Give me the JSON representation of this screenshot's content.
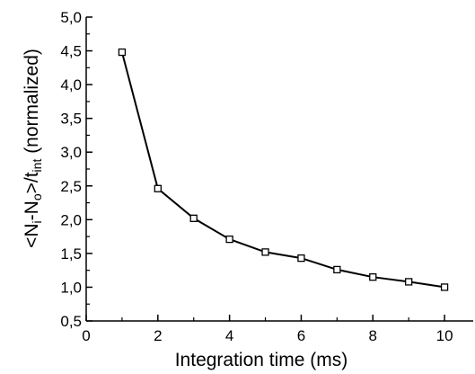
{
  "chart_data": {
    "type": "line",
    "title": "",
    "xlabel": "Integration time (ms)",
    "ylabel": {
      "parts": [
        {
          "text": "<N",
          "sub": false
        },
        {
          "text": "i",
          "sub": true
        },
        {
          "text": "-N",
          "sub": false
        },
        {
          "text": "o",
          "sub": true
        },
        {
          "text": ">/t",
          "sub": false
        },
        {
          "text": "int",
          "sub": true
        },
        {
          "text": "  (normalized)",
          "sub": false
        }
      ]
    },
    "xlim": [
      0,
      10.8
    ],
    "ylim": [
      0.5,
      5.0
    ],
    "xticks": [
      0,
      2,
      4,
      6,
      8,
      10
    ],
    "xtick_labels": [
      "0",
      "2",
      "4",
      "6",
      "8",
      "10"
    ],
    "yticks": [
      0.5,
      1.0,
      1.5,
      2.0,
      2.5,
      3.0,
      3.5,
      4.0,
      4.5,
      5.0
    ],
    "ytick_labels": [
      "0,5",
      "1,0",
      "1,5",
      "2,0",
      "2,5",
      "3,0",
      "3,5",
      "4,0",
      "4,5",
      "5,0"
    ],
    "grid": false,
    "series": [
      {
        "marker": "open-square",
        "color": "#000000",
        "x": [
          1,
          2,
          3,
          4,
          5,
          6,
          7,
          8,
          9,
          10
        ],
        "y": [
          4.48,
          2.46,
          2.02,
          1.71,
          1.52,
          1.43,
          1.26,
          1.15,
          1.08,
          1.0
        ]
      }
    ]
  }
}
